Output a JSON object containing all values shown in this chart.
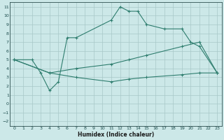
{
  "xlabel": "Humidex (Indice chaleur)",
  "bg_color": "#cce8e8",
  "line_color": "#2e7d6e",
  "grid_color": "#a8c8c8",
  "xlim": [
    -0.5,
    23.5
  ],
  "ylim": [
    -2.5,
    11.5
  ],
  "xticks": [
    0,
    1,
    2,
    3,
    4,
    5,
    6,
    7,
    8,
    9,
    10,
    11,
    12,
    13,
    14,
    15,
    16,
    17,
    18,
    19,
    20,
    21,
    22,
    23
  ],
  "yticks": [
    -2,
    -1,
    0,
    1,
    2,
    3,
    4,
    5,
    6,
    7,
    8,
    9,
    10,
    11
  ],
  "line1_x": [
    0,
    2,
    3,
    4,
    5,
    6,
    7,
    11,
    12,
    13,
    14,
    15,
    17,
    19,
    20,
    21,
    23
  ],
  "line1_y": [
    5,
    5,
    3.5,
    1.5,
    2.5,
    7.5,
    7.5,
    9.5,
    11,
    10.5,
    10.5,
    9.0,
    8.5,
    8.5,
    7.0,
    6.5,
    3.5
  ],
  "line2_x": [
    0,
    4,
    7,
    11,
    13,
    15,
    19,
    21,
    23
  ],
  "line2_y": [
    5,
    3.5,
    4.0,
    4.5,
    5.0,
    5.5,
    6.5,
    7.0,
    3.5
  ],
  "line3_x": [
    0,
    4,
    7,
    11,
    13,
    15,
    19,
    21,
    23
  ],
  "line3_y": [
    5,
    3.5,
    3.0,
    2.5,
    2.8,
    3.0,
    3.3,
    3.5,
    3.5
  ]
}
